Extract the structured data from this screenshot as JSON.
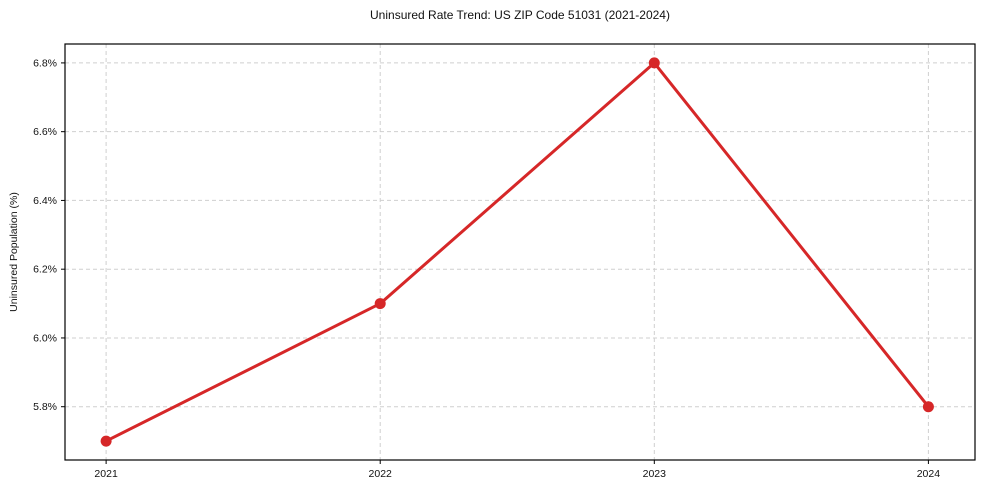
{
  "chart_data": {
    "type": "line",
    "title": "Uninsured Rate Trend: US ZIP Code 51031 (2021-2024)",
    "xlabel": "",
    "ylabel": "Uninsured Population (%)",
    "categories": [
      "2021",
      "2022",
      "2023",
      "2024"
    ],
    "x": [
      2021,
      2022,
      2023,
      2024
    ],
    "values": [
      5.7,
      6.1,
      6.8,
      5.8
    ],
    "y_ticks": [
      5.8,
      6.0,
      6.2,
      6.4,
      6.6,
      6.8
    ],
    "y_tick_labels": [
      "5.8%",
      "6.0%",
      "6.2%",
      "6.4%",
      "6.6%",
      "6.8%"
    ],
    "xlim": [
      2020.85,
      2024.17
    ],
    "ylim": [
      5.645,
      6.855
    ],
    "grid": true,
    "legend": "none",
    "line_color": "#d62728",
    "marker_color": "#d62728",
    "grid_color": "#cfcfcf",
    "spine_color": "#000000",
    "text_color": "#111111"
  }
}
